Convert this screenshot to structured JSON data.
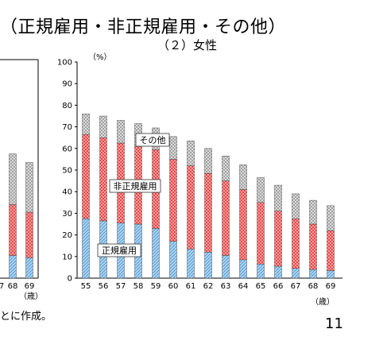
{
  "header": {
    "title": "（正規雇用・非正規雇用・その他）",
    "subtitle": "（２）女性",
    "footnote": "とに作成。",
    "page_number": "11"
  },
  "left_chart_fragment": {
    "x_ticks": [
      "7",
      "68",
      "69"
    ],
    "x_unit": "（歳）",
    "totals": [
      57.5,
      53.5
    ],
    "regular": [
      10.5,
      9.5
    ],
    "nonregular": [
      23.5,
      21.0
    ]
  },
  "chart_data": {
    "type": "bar",
    "stacked": true,
    "title": "（２）女性",
    "ylabel": "（%）",
    "xlabel": "（歳）",
    "ylim": [
      0,
      100
    ],
    "yticks": [
      0,
      10,
      20,
      30,
      40,
      50,
      60,
      70,
      80,
      90,
      100
    ],
    "categories": [
      "55",
      "56",
      "57",
      "58",
      "59",
      "60",
      "61",
      "62",
      "63",
      "64",
      "65",
      "66",
      "67",
      "68",
      "69"
    ],
    "series": [
      {
        "name": "正規雇用",
        "color": "#7fb8e6",
        "values": [
          27.5,
          26.5,
          25.5,
          25.0,
          23.0,
          17.0,
          13.5,
          12.0,
          10.5,
          8.5,
          6.5,
          5.5,
          4.5,
          4.0,
          3.5
        ]
      },
      {
        "name": "非正規雇用",
        "color": "#ff6b6b",
        "values": [
          39.0,
          38.5,
          37.0,
          36.0,
          36.5,
          38.0,
          38.5,
          36.5,
          34.5,
          32.5,
          28.5,
          25.5,
          23.0,
          21.0,
          18.5
        ]
      },
      {
        "name": "その他",
        "color": "#c8c8c8",
        "values": [
          9.5,
          10.0,
          10.5,
          10.5,
          10.0,
          10.5,
          11.5,
          11.5,
          11.5,
          11.5,
          11.5,
          12.0,
          11.5,
          11.0,
          11.5
        ]
      }
    ],
    "annotations": [
      "その他",
      "非正規雇用",
      "正規雇用"
    ]
  }
}
